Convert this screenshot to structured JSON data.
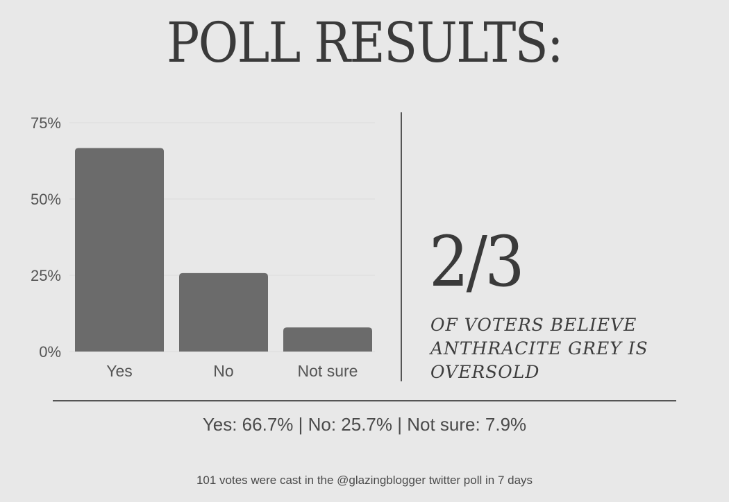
{
  "title": "POLL RESULTS:",
  "stat": {
    "fraction": "2/3",
    "caption": "OF VOTERS BELIEVE ANTHRACITE GREY IS OVERSOLD"
  },
  "summary": "Yes: 66.7% | No: 25.7% | Not sure: 7.9%",
  "footnote": "101 votes were cast in the @glazingblogger twitter poll in 7 days",
  "colors": {
    "background": "#e8e8e8",
    "bar": "#6b6b6b",
    "text": "#444444"
  },
  "chart_data": {
    "type": "bar",
    "categories": [
      "Yes",
      "No",
      "Not sure"
    ],
    "values": [
      66.7,
      25.7,
      7.9
    ],
    "ylim": [
      0,
      75
    ],
    "yticks": [
      0,
      25,
      50,
      75
    ],
    "ytick_labels": [
      "0%",
      "25%",
      "50%",
      "75%"
    ],
    "grid": true,
    "title": "",
    "xlabel": "",
    "ylabel": ""
  }
}
